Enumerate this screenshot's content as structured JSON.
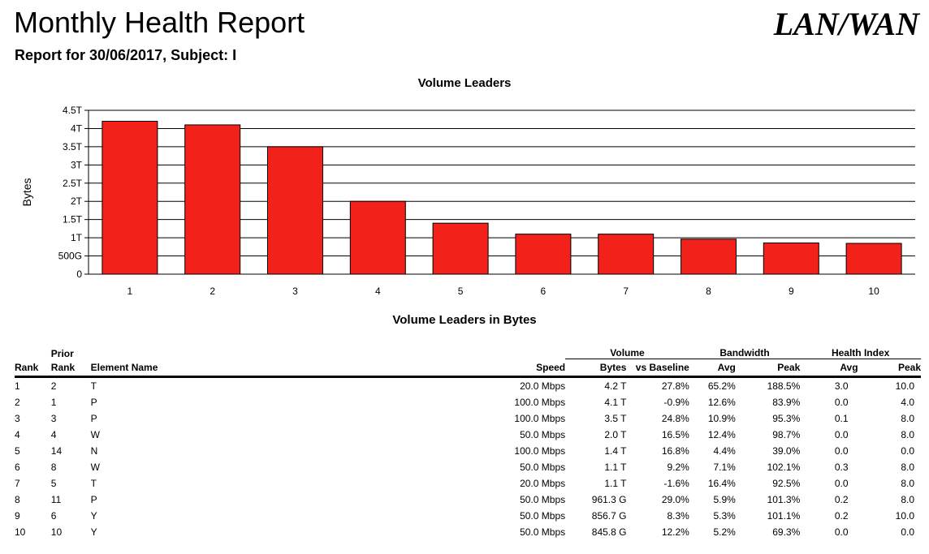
{
  "header": {
    "title": "Monthly Health Report",
    "subtitle": "Report for 30/06/2017, Subject: I",
    "logo": "LAN/WAN"
  },
  "chart_data": {
    "type": "bar",
    "title": "Volume Leaders",
    "ylabel": "Bytes",
    "xlabel": "",
    "categories": [
      "1",
      "2",
      "3",
      "4",
      "5",
      "6",
      "7",
      "8",
      "9",
      "10"
    ],
    "values": [
      4.2,
      4.1,
      3.5,
      2.0,
      1.4,
      1.1,
      1.1,
      0.9613,
      0.8567,
      0.8458
    ],
    "value_unit": "T",
    "ylim": [
      0,
      4.5
    ],
    "yticks": [
      0,
      0.5,
      1,
      1.5,
      2,
      2.5,
      3,
      3.5,
      4,
      4.5
    ],
    "ytick_labels": [
      "0",
      "500G",
      "1T",
      "1.5T",
      "2T",
      "2.5T",
      "3T",
      "3.5T",
      "4T",
      "4.5T"
    ],
    "grid": true,
    "bar_color": "#f2211a"
  },
  "table": {
    "title": "Volume Leaders in Bytes",
    "group_headers": {
      "prior": "Prior",
      "volume": "Volume",
      "bandwidth": "Bandwidth",
      "health": "Health Index"
    },
    "columns": [
      "Rank",
      "Rank",
      "Element Name",
      "Speed",
      "Bytes",
      "vs Baseline",
      "Avg",
      "Peak",
      "Avg",
      "Peak"
    ],
    "rows": [
      [
        "1",
        "2",
        "T",
        "20.0 Mbps",
        "4.2 T",
        "27.8%",
        "65.2%",
        "188.5%",
        "3.0",
        "10.0"
      ],
      [
        "2",
        "1",
        "P",
        "100.0 Mbps",
        "4.1 T",
        "-0.9%",
        "12.6%",
        "83.9%",
        "0.0",
        "4.0"
      ],
      [
        "3",
        "3",
        "P",
        "100.0 Mbps",
        "3.5 T",
        "24.8%",
        "10.9%",
        "95.3%",
        "0.1",
        "8.0"
      ],
      [
        "4",
        "4",
        "W",
        "50.0 Mbps",
        "2.0 T",
        "16.5%",
        "12.4%",
        "98.7%",
        "0.0",
        "8.0"
      ],
      [
        "5",
        "14",
        "N",
        "100.0 Mbps",
        "1.4 T",
        "16.8%",
        "4.4%",
        "39.0%",
        "0.0",
        "0.0"
      ],
      [
        "6",
        "8",
        "W",
        "50.0 Mbps",
        "1.1 T",
        "9.2%",
        "7.1%",
        "102.1%",
        "0.3",
        "8.0"
      ],
      [
        "7",
        "5",
        "T",
        "20.0 Mbps",
        "1.1 T",
        "-1.6%",
        "16.4%",
        "92.5%",
        "0.0",
        "8.0"
      ],
      [
        "8",
        "11",
        "P",
        "50.0 Mbps",
        "961.3 G",
        "29.0%",
        "5.9%",
        "101.3%",
        "0.2",
        "8.0"
      ],
      [
        "9",
        "6",
        "Y",
        "50.0 Mbps",
        "856.7 G",
        "8.3%",
        "5.3%",
        "101.1%",
        "0.2",
        "10.0"
      ],
      [
        "10",
        "10",
        "Y",
        "50.0 Mbps",
        "845.8 G",
        "12.2%",
        "5.2%",
        "69.3%",
        "0.0",
        "0.0"
      ]
    ]
  }
}
